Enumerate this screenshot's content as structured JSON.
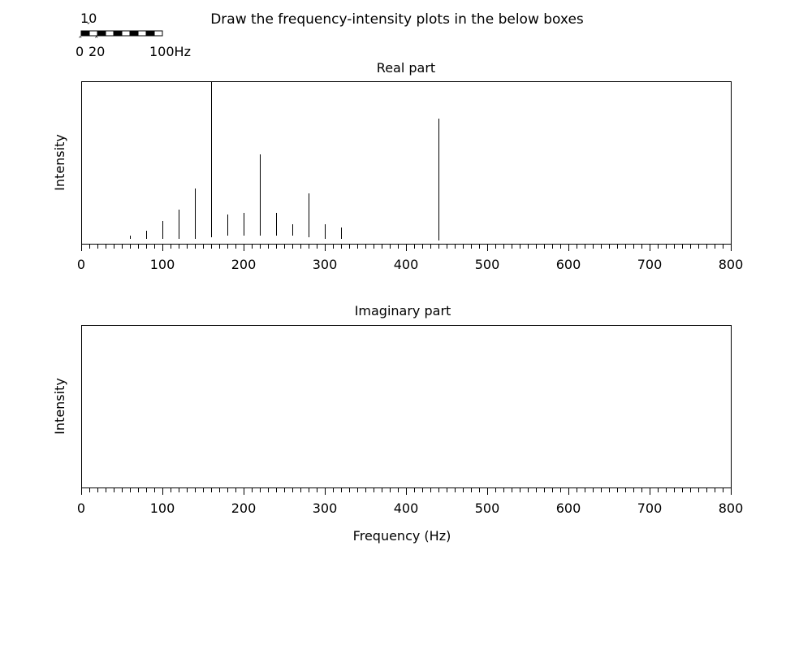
{
  "header": {
    "instruction": "Draw the frequency-intensity plots in the below boxes"
  },
  "scale_bar": {
    "label_top": "10",
    "label_zero": "0",
    "label_twenty": "20",
    "label_end": "100Hz",
    "caret_down": "ˇ",
    "caret_up": "ˆ",
    "segments": 10,
    "range_hz": [
      0,
      100
    ]
  },
  "chart_data": [
    {
      "type": "bar",
      "title": "Real part",
      "ylabel": "Intensity",
      "xlabel": "",
      "xlim": [
        0,
        800
      ],
      "ylim": [
        0,
        100
      ],
      "xticks": [
        "0",
        "100",
        "200",
        "300",
        "400",
        "500",
        "600",
        "700",
        "800"
      ],
      "xtick_values": [
        0,
        100,
        200,
        300,
        400,
        500,
        600,
        700,
        800
      ],
      "minor_tick_step": 10,
      "grid": false,
      "lines": [
        {
          "x": 60,
          "low": 3,
          "high": 5
        },
        {
          "x": 80,
          "low": 3,
          "high": 8
        },
        {
          "x": 100,
          "low": 3,
          "high": 14
        },
        {
          "x": 120,
          "low": 3,
          "high": 21
        },
        {
          "x": 140,
          "low": 3,
          "high": 34
        },
        {
          "x": 160,
          "low": 4,
          "high": 100
        },
        {
          "x": 180,
          "low": 5,
          "high": 18
        },
        {
          "x": 200,
          "low": 5,
          "high": 19
        },
        {
          "x": 220,
          "low": 5,
          "high": 55
        },
        {
          "x": 240,
          "low": 5,
          "high": 19
        },
        {
          "x": 260,
          "low": 5,
          "high": 12
        },
        {
          "x": 280,
          "low": 4,
          "high": 31
        },
        {
          "x": 300,
          "low": 3,
          "high": 12
        },
        {
          "x": 320,
          "low": 3,
          "high": 10
        },
        {
          "x": 440,
          "low": 2,
          "high": 77
        }
      ]
    },
    {
      "type": "bar",
      "title": "Imaginary part",
      "ylabel": "Intensity",
      "xlabel": "Frequency (Hz)",
      "xlim": [
        0,
        800
      ],
      "ylim": [
        0,
        100
      ],
      "xticks": [
        "0",
        "100",
        "200",
        "300",
        "400",
        "500",
        "600",
        "700",
        "800"
      ],
      "xtick_values": [
        0,
        100,
        200,
        300,
        400,
        500,
        600,
        700,
        800
      ],
      "minor_tick_step": 10,
      "grid": false,
      "lines": []
    }
  ]
}
